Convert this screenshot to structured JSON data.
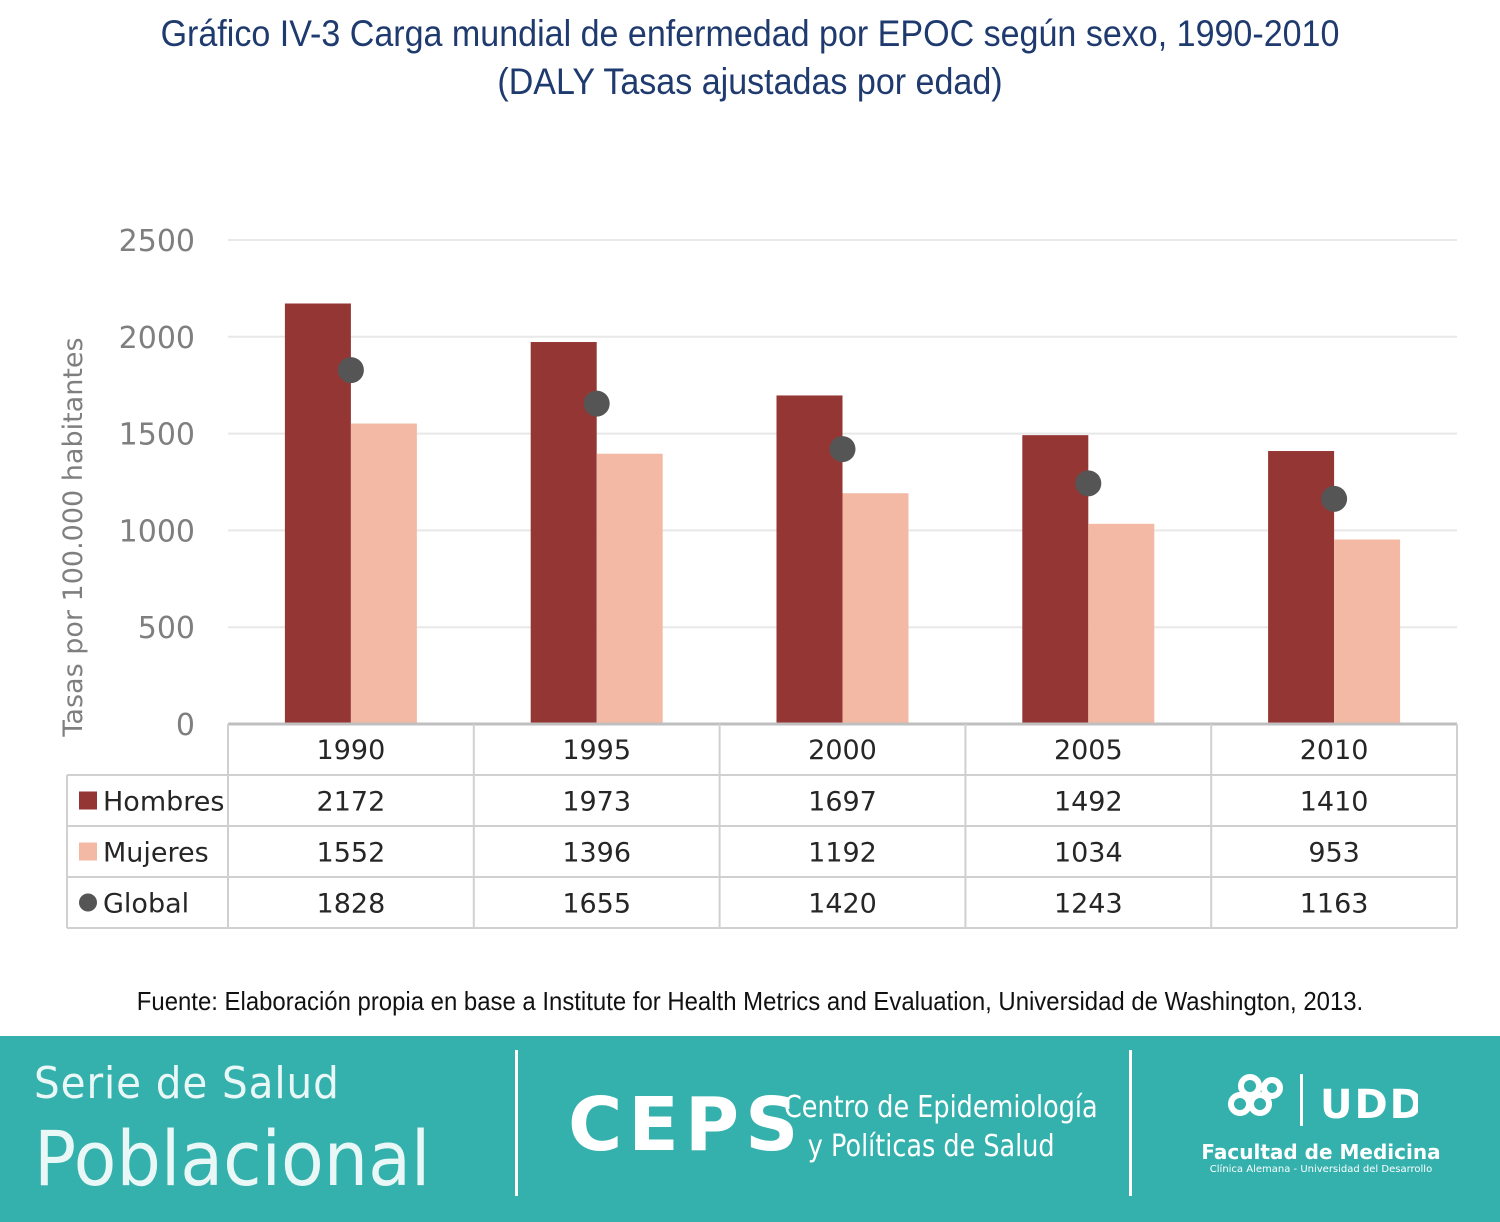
{
  "header": {
    "title_line1": "Gráfico IV-3 Carga mundial de enfermedad por EPOC según sexo, 1990-2010",
    "title_line2": "(DALY Tasas ajustadas por edad)"
  },
  "chart_data": {
    "type": "bar",
    "categories": [
      "1990",
      "1995",
      "2000",
      "2005",
      "2010"
    ],
    "series": [
      {
        "name": "Hombres",
        "kind": "bar",
        "color": "#943634",
        "values": [
          2172,
          1973,
          1697,
          1492,
          1410
        ]
      },
      {
        "name": "Mujeres",
        "kind": "bar",
        "color": "#f4b9a5",
        "values": [
          1552,
          1396,
          1192,
          1034,
          953
        ]
      },
      {
        "name": "Global",
        "kind": "marker",
        "color": "#555555",
        "values": [
          1828,
          1655,
          1420,
          1243,
          1163
        ]
      }
    ],
    "ylabel": "Tasas por 100.000 habitantes",
    "ylim": [
      0,
      2500
    ],
    "yticks": [
      0,
      500,
      1000,
      1500,
      2000,
      2500
    ],
    "grid": true,
    "legend": "data-table"
  },
  "source": "Fuente: Elaboración propia en base a Institute for Health Metrics and Evaluation, Universidad de Washington, 2013.",
  "footer": {
    "serie": "Serie de Salud",
    "poblacional": "Poblacional",
    "ceps": "CEPS",
    "centro_line1": "Centro de Epidemiología",
    "centro_line2": "y Políticas de Salud",
    "udd_logo": "UDD",
    "facultad": "Facultad de Medicina",
    "clinica": "Clínica Alemana - Universidad del Desarrollo"
  }
}
